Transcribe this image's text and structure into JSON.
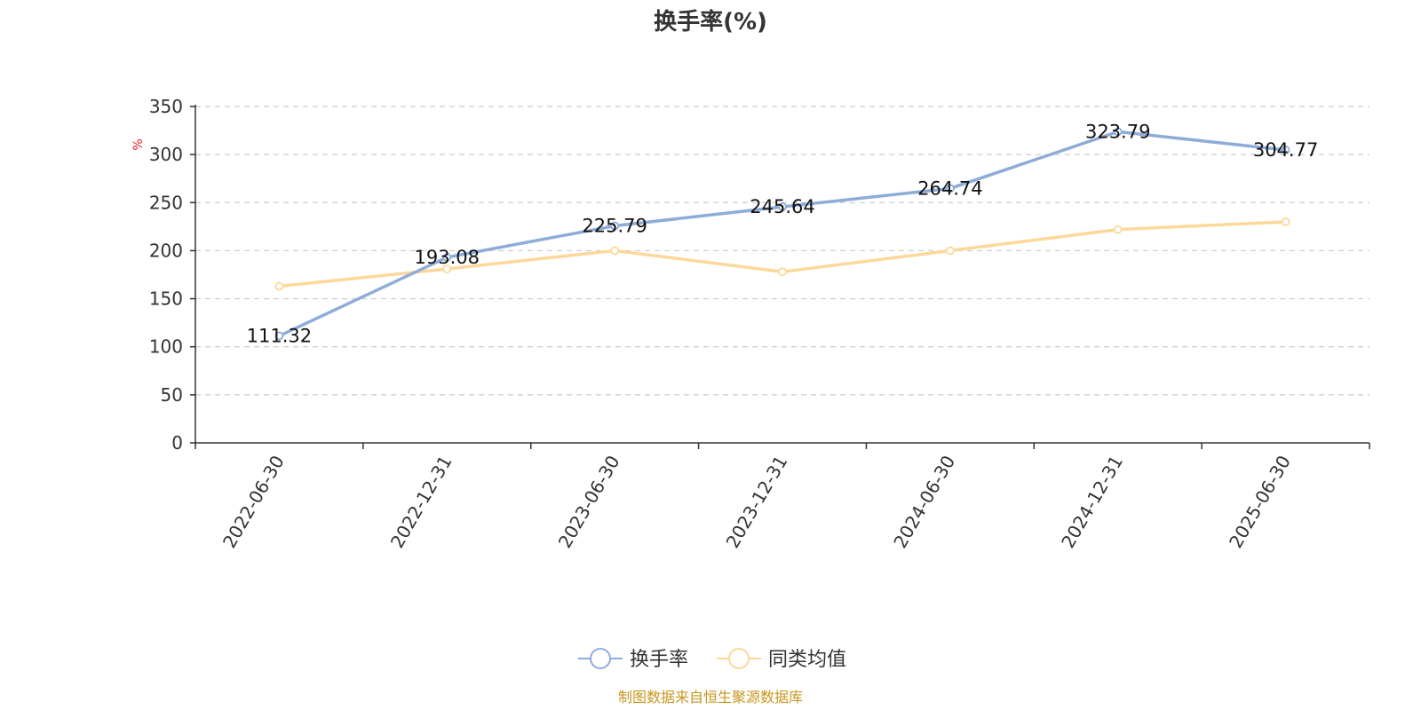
{
  "chart_data": {
    "type": "line",
    "title": "换手率(%)",
    "y_unit": "%",
    "ylim": [
      0,
      350
    ],
    "y_ticks": [
      0,
      50,
      100,
      150,
      200,
      250,
      300,
      350
    ],
    "grid": true,
    "legend_position": "bottom-center",
    "categories": [
      "2022-06-30",
      "2022-12-31",
      "2023-06-30",
      "2023-12-31",
      "2024-06-30",
      "2024-12-31",
      "2025-06-30"
    ],
    "series": [
      {
        "name": "换手率",
        "color": "#8eacd8",
        "values": [
          111.32,
          193.08,
          225.79,
          245.64,
          264.74,
          323.79,
          304.77
        ],
        "labels": [
          "111.32",
          "193.08",
          "225.79",
          "245.64",
          "264.74",
          "323.79",
          "304.77"
        ],
        "show_labels": true
      },
      {
        "name": "同类均值",
        "color": "#fdd89a",
        "values": [
          163,
          181,
          200,
          178,
          200,
          222,
          230
        ],
        "show_labels": false
      }
    ],
    "source": "制图数据来自恒生聚源数据库",
    "source_color": "#c8961e",
    "unit_color": "#e02020"
  }
}
